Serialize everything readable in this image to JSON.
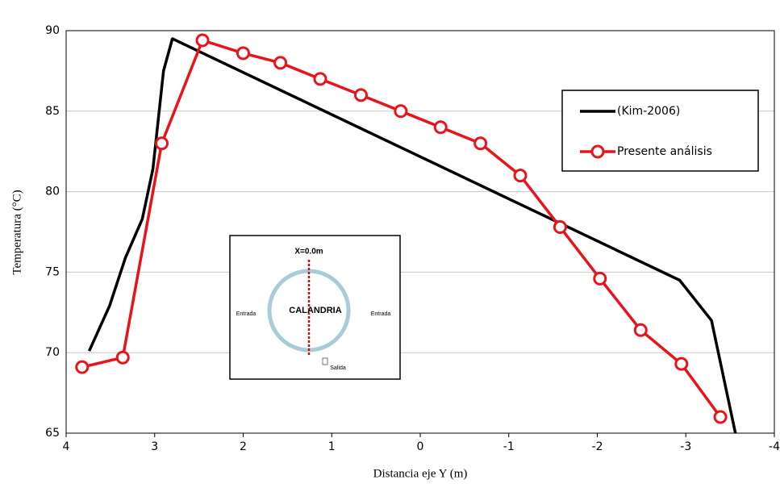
{
  "chart_data": {
    "type": "line",
    "x_label": "Distancia eje Y (m)",
    "y_label": "Temperatura  (°C)",
    "xlim": [
      4,
      -4
    ],
    "xticks": [
      4,
      3,
      2,
      1,
      0,
      -1,
      -2,
      -3,
      -4
    ],
    "ylim": [
      65,
      90
    ],
    "yticks": [
      65,
      70,
      75,
      80,
      85,
      90
    ],
    "grid": true,
    "legend": "upper right",
    "series": [
      {
        "name": "(Kim-2006)",
        "color": "#000000",
        "marker": false,
        "x": [
          3.74,
          3.51,
          3.33,
          3.14,
          3.02,
          2.9,
          2.8,
          -2.93,
          -3.29,
          -3.56
        ],
        "values": [
          70.1,
          72.9,
          75.9,
          78.3,
          81.4,
          87.5,
          89.5,
          74.5,
          72.0,
          65.0
        ]
      },
      {
        "name": "Presente análisis",
        "color": "#e8141b",
        "marker": true,
        "x": [
          3.82,
          3.36,
          2.92,
          2.46,
          2.0,
          1.58,
          1.13,
          0.67,
          0.22,
          -0.23,
          -0.68,
          -1.13,
          -1.58,
          -2.03,
          -2.49,
          -2.95,
          -3.39
        ],
        "values": [
          69.1,
          69.7,
          83.0,
          89.4,
          88.6,
          88.0,
          87.0,
          86.0,
          85.0,
          84.0,
          83.0,
          81.0,
          77.8,
          74.6,
          71.4,
          69.3,
          66.0
        ]
      }
    ],
    "inset": {
      "title": "X=0.0m",
      "center": "CALANDRIA",
      "left": "Entrada",
      "right": "Entrada",
      "bottom": "Salida"
    }
  }
}
